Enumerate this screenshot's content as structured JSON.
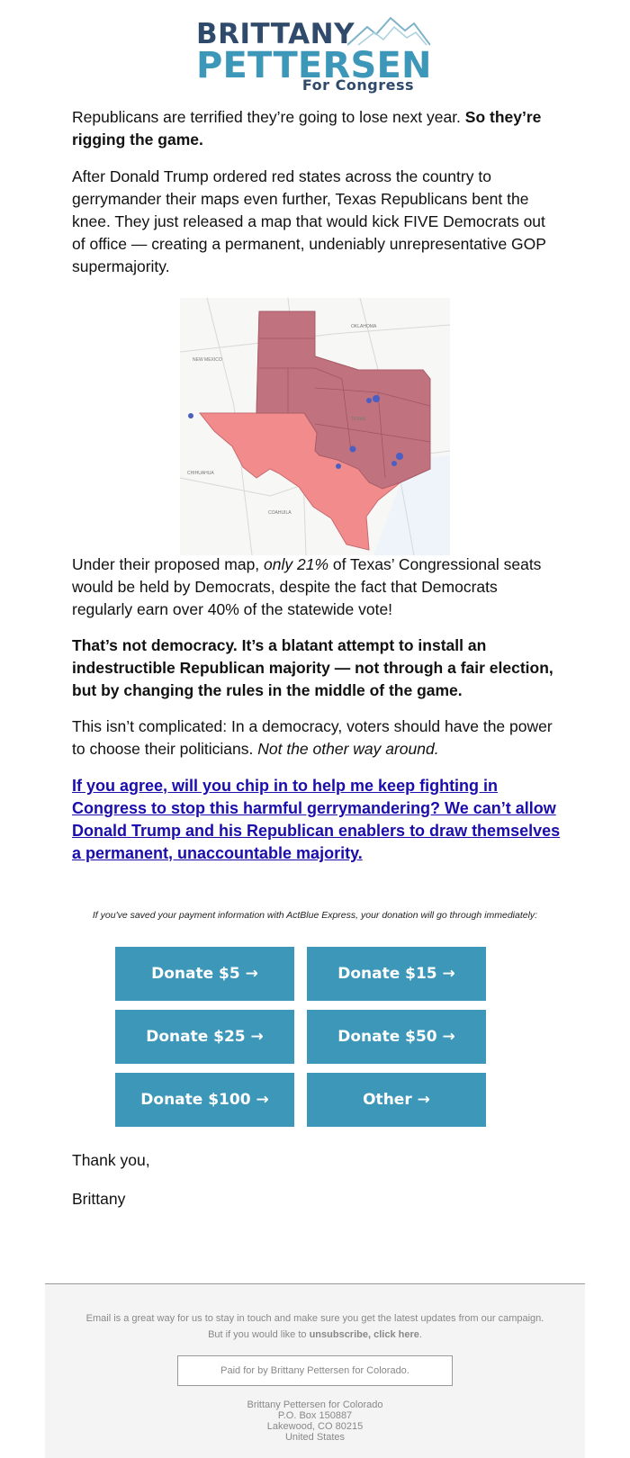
{
  "logo": {
    "line1": "BRITTANY",
    "line2": "PETTERSEN",
    "line3": "For Congress",
    "colors": {
      "navy": "#2f4a6b",
      "teal": "#3d97b8"
    }
  },
  "body": {
    "p1_plain": "Republicans are terrified they’re going to lose next year. ",
    "p1_bold": "So they’re rigging the game.",
    "p2": "After Donald Trump ordered red states across the country to gerrymander their maps even further, Texas Republicans bent the knee. They just released a map that would kick FIVE Democrats out of office — creating a permanent, undeniably unrepresentative GOP supermajority.",
    "p3_a": "Under their proposed map, ",
    "p3_italic": "only 21%",
    "p3_b": " of Texas’ Congressional seats would be held by Democrats, despite the fact that Democrats regularly earn over 40% of the statewide vote!",
    "p4_bold": "That’s not democracy. It’s a blatant attempt to install an indestructible Republican majority — not through a fair election, but by changing the rules in the middle of the game.",
    "p5_plain": "This isn’t complicated: In a democracy, voters should have the power to choose their politicians. ",
    "p5_italic": "Not the other way around.",
    "cta": "If you agree, will you chip in to help me keep fighting in Congress to stop this harmful gerrymandering? We can’t allow Donald Trump and his Republican enablers to draw themselves a permanent, unaccountable majority.",
    "note": "If you've saved your payment information with ActBlue Express, your donation will go through immediately:",
    "thanks": "Thank you,",
    "signature": "Brittany"
  },
  "map": {
    "labels": [
      "OKLAHOMA",
      "NEW MEXICO",
      "TEXAS",
      "CHIHUAHUA",
      "COAHUILA"
    ],
    "colors": {
      "republican": "#c0737f",
      "contested": "#f28c8c",
      "democrat": "#4a5fc1"
    }
  },
  "donate_buttons": [
    {
      "label": "Donate $5 →"
    },
    {
      "label": "Donate $15 →"
    },
    {
      "label": "Donate $25 →"
    },
    {
      "label": "Donate $50 →"
    },
    {
      "label": "Donate $100 →"
    },
    {
      "label": "Other →"
    }
  ],
  "footer": {
    "line1": "Email is a great way for us to stay in touch and make sure you get the latest updates from our campaign.",
    "line2_plain": "But if you would like to ",
    "line2_link": "unsubscribe, click here",
    "line2_end": ".",
    "paid_for": "Paid for by Brittany Pettersen for Colorado.",
    "address": [
      "Brittany Pettersen for Colorado",
      "P.O. Box 150887",
      "Lakewood, CO 80215",
      "United States"
    ]
  }
}
